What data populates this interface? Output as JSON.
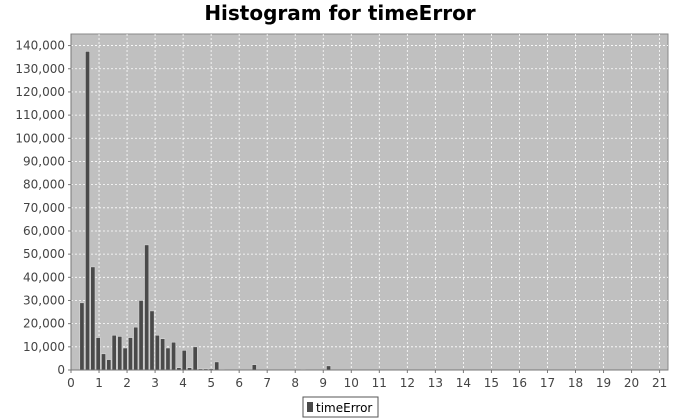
{
  "chart_data": {
    "type": "bar",
    "title": "Histogram for timeError",
    "xlabel": "",
    "ylabel": "",
    "xlim": [
      0,
      21.3
    ],
    "ylim": [
      0,
      145000
    ],
    "grid": true,
    "legend_position": "bottom",
    "x_ticks": [
      "0",
      "1",
      "2",
      "3",
      "4",
      "5",
      "6",
      "7",
      "8",
      "9",
      "10",
      "11",
      "12",
      "13",
      "14",
      "15",
      "16",
      "17",
      "18",
      "19",
      "20",
      "21"
    ],
    "y_ticks": [
      "0",
      "10,000",
      "20,000",
      "30,000",
      "40,000",
      "50,000",
      "60,000",
      "70,000",
      "80,000",
      "90,000",
      "100,000",
      "110,000",
      "120,000",
      "130,000",
      "140,000"
    ],
    "bin_width": 0.19,
    "series": [
      {
        "name": "timeError",
        "color": "#4a4a4a",
        "x": [
          0.39,
          0.59,
          0.78,
          0.97,
          1.16,
          1.35,
          1.54,
          1.74,
          1.93,
          2.12,
          2.31,
          2.5,
          2.7,
          2.89,
          3.08,
          3.27,
          3.46,
          3.66,
          3.85,
          4.04,
          4.23,
          4.43,
          4.62,
          4.81,
          5.0,
          5.2,
          5.39,
          6.54,
          8.28,
          9.19
        ],
        "values": [
          29000,
          137500,
          44500,
          14000,
          7000,
          4500,
          15000,
          14500,
          9500,
          14000,
          18500,
          30000,
          54000,
          25500,
          15000,
          13500,
          9500,
          12000,
          1000,
          8500,
          1000,
          10000,
          500,
          500,
          500,
          3500,
          200,
          2300,
          200,
          1800
        ]
      }
    ]
  }
}
